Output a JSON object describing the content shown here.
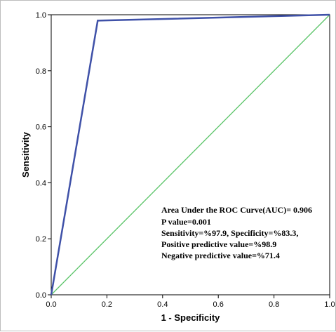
{
  "chart_data": {
    "type": "line",
    "title": "",
    "xlabel": "1 - Specificity",
    "ylabel": "Sensitivity",
    "xlim": [
      0,
      1
    ],
    "ylim": [
      0,
      1
    ],
    "grid": false,
    "x_ticks": [
      "0.0",
      "0.2",
      "0.4",
      "0.6",
      "0.8",
      "1.0"
    ],
    "y_ticks": [
      "0.0",
      "0.2",
      "0.4",
      "0.6",
      "0.8",
      "1.0"
    ],
    "series": [
      {
        "color": "#3f51a8",
        "points": [
          [
            0,
            0
          ],
          [
            0.167,
            0.979
          ],
          [
            1,
            1
          ]
        ]
      },
      {
        "color": "#5ac468",
        "points": [
          [
            0,
            0
          ],
          [
            1,
            1
          ]
        ]
      }
    ],
    "annotations": [
      "Area Under the ROC Curve(AUC)= 0.906",
      "P value=0.001",
      "Sensitivity=%97.9, Specificity=%83.3,",
      "Positive predictive value=%98.9",
      "Negative predictive value=%71.4"
    ]
  }
}
